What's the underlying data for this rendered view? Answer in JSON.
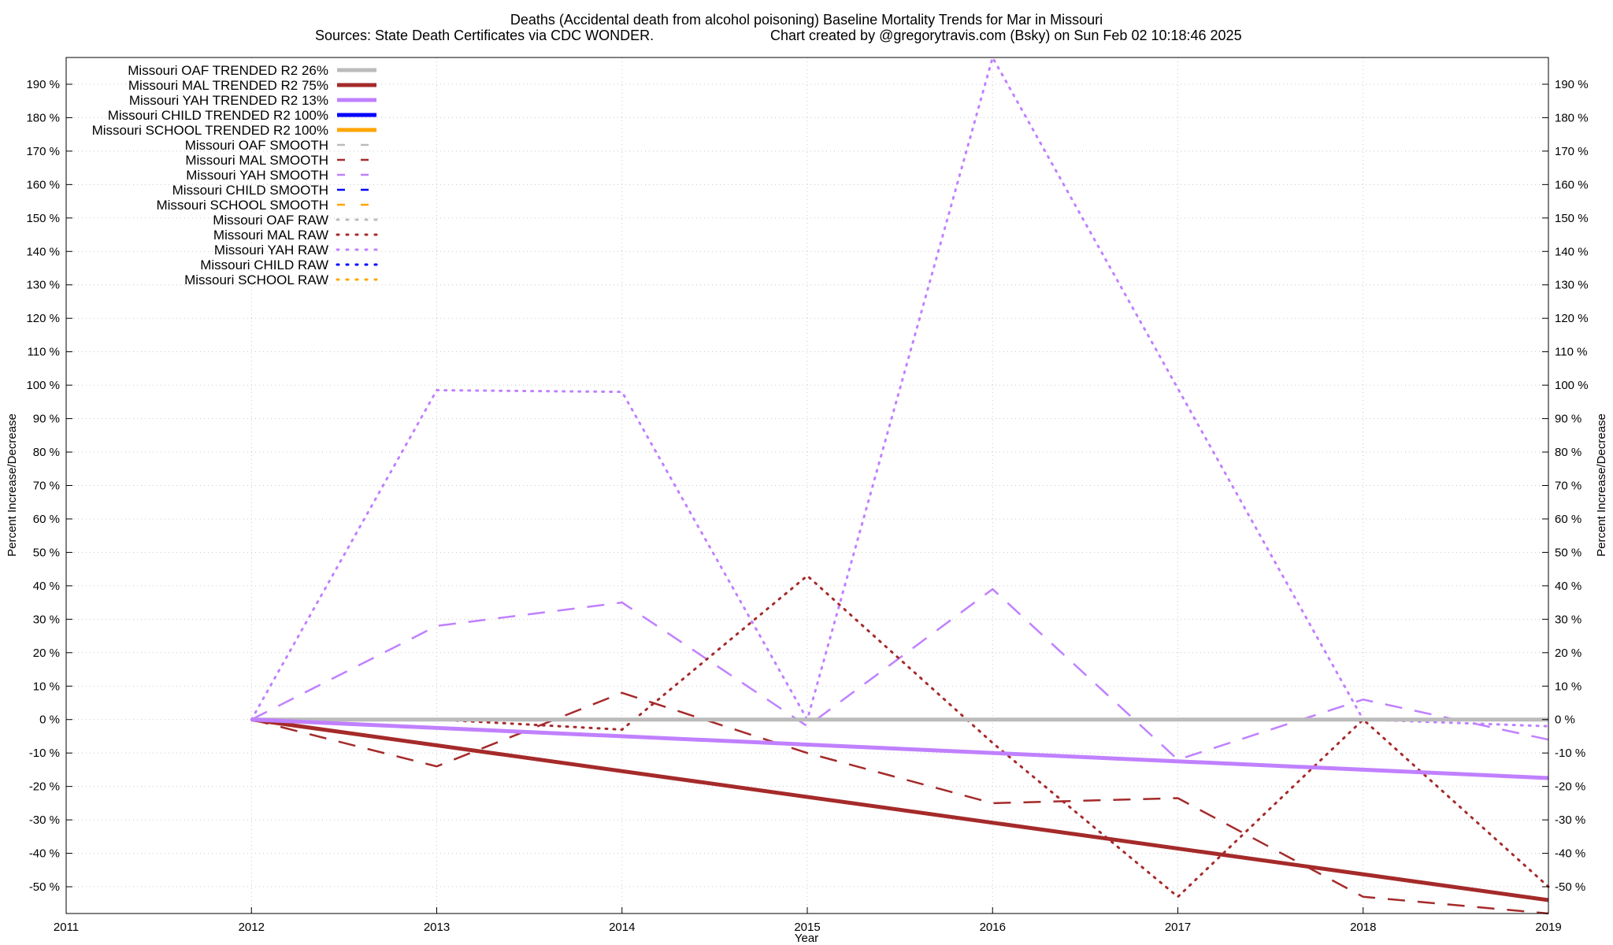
{
  "chart_data": {
    "type": "line",
    "title": "Deaths (Accidental death from alcohol poisoning)  Baseline Mortality Trends for Mar in Missouri",
    "subtitle_left": "Sources: State Death Certificates via CDC WONDER.",
    "subtitle_right": "Chart created by @gregorytravis.com (Bsky) on Sun Feb 02 10:18:46 2025",
    "xlabel": "Year",
    "ylabel": "Percent Increase/Decrease",
    "xlim": [
      2011,
      2019
    ],
    "ylim": [
      -58,
      198
    ],
    "x_ticks": [
      "2011",
      "2012",
      "2013",
      "2014",
      "2015",
      "2016",
      "2017",
      "2018",
      "2019"
    ],
    "y_ticks": [
      "-50 %",
      "-40 %",
      "-30 %",
      "-20 %",
      "-10 %",
      "0 %",
      "10 %",
      "20 %",
      "30 %",
      "40 %",
      "50 %",
      "60 %",
      "70 %",
      "80 %",
      "90 %",
      "100 %",
      "110 %",
      "120 %",
      "130 %",
      "140 %",
      "150 %",
      "160 %",
      "170 %",
      "180 %",
      "190 %"
    ],
    "grid": true,
    "legend_position": "top-left",
    "series": [
      {
        "name": "Missouri OAF TRENDED R2  26%",
        "style": "solid",
        "color": "#bbbbbb",
        "x": [
          2012,
          2019
        ],
        "values": [
          0,
          0
        ]
      },
      {
        "name": "Missouri MAL TRENDED R2  75%",
        "style": "solid",
        "color": "#a52a2a",
        "x": [
          2012,
          2019
        ],
        "values": [
          0,
          -54
        ]
      },
      {
        "name": "Missouri YAH TRENDED R2  13%",
        "style": "solid",
        "color": "#c080ff",
        "x": [
          2012,
          2019
        ],
        "values": [
          0,
          -17.5
        ]
      },
      {
        "name": "Missouri CHILD TRENDED R2 100%",
        "style": "solid",
        "color": "#0000ff",
        "x": [],
        "values": []
      },
      {
        "name": "Missouri SCHOOL TRENDED R2 100%",
        "style": "solid",
        "color": "#ffa500",
        "x": [],
        "values": []
      },
      {
        "name": "Missouri OAF SMOOTH",
        "style": "dashed",
        "color": "#bbbbbb",
        "x": [
          2012,
          2019
        ],
        "values": [
          0,
          0
        ]
      },
      {
        "name": "Missouri MAL SMOOTH",
        "style": "dashed",
        "color": "#a52a2a",
        "x": [
          2012,
          2013,
          2014,
          2015,
          2016,
          2017,
          2018,
          2019
        ],
        "values": [
          0,
          -14,
          8,
          -10,
          -25,
          -23.5,
          -53,
          -58
        ]
      },
      {
        "name": "Missouri YAH SMOOTH",
        "style": "dashed",
        "color": "#c080ff",
        "x": [
          2012,
          2013,
          2014,
          2015,
          2016,
          2017,
          2018,
          2019
        ],
        "values": [
          0,
          28,
          35,
          -2,
          39,
          -12,
          6,
          -6
        ]
      },
      {
        "name": "Missouri CHILD SMOOTH",
        "style": "dashed",
        "color": "#0000ff",
        "x": [],
        "values": []
      },
      {
        "name": "Missouri SCHOOL SMOOTH",
        "style": "dashed",
        "color": "#ffa500",
        "x": [],
        "values": []
      },
      {
        "name": "Missouri OAF RAW",
        "style": "dotted",
        "color": "#bbbbbb",
        "x": [
          2012,
          2019
        ],
        "values": [
          0,
          0
        ]
      },
      {
        "name": "Missouri MAL RAW",
        "style": "dotted",
        "color": "#a52a2a",
        "x": [
          2012,
          2013,
          2014,
          2015,
          2016,
          2017,
          2018,
          2019
        ],
        "values": [
          0,
          0,
          -3,
          43,
          -7,
          -53,
          0,
          -50
        ]
      },
      {
        "name": "Missouri YAH RAW",
        "style": "dotted",
        "color": "#c080ff",
        "x": [
          2012,
          2013,
          2014,
          2015,
          2016,
          2017,
          2018,
          2019
        ],
        "values": [
          0,
          98.5,
          98,
          0,
          198,
          99,
          0,
          -2
        ]
      },
      {
        "name": "Missouri CHILD RAW",
        "style": "dotted",
        "color": "#0000ff",
        "x": [],
        "values": []
      },
      {
        "name": "Missouri SCHOOL RAW",
        "style": "dotted",
        "color": "#ffa500",
        "x": [],
        "values": []
      }
    ]
  }
}
